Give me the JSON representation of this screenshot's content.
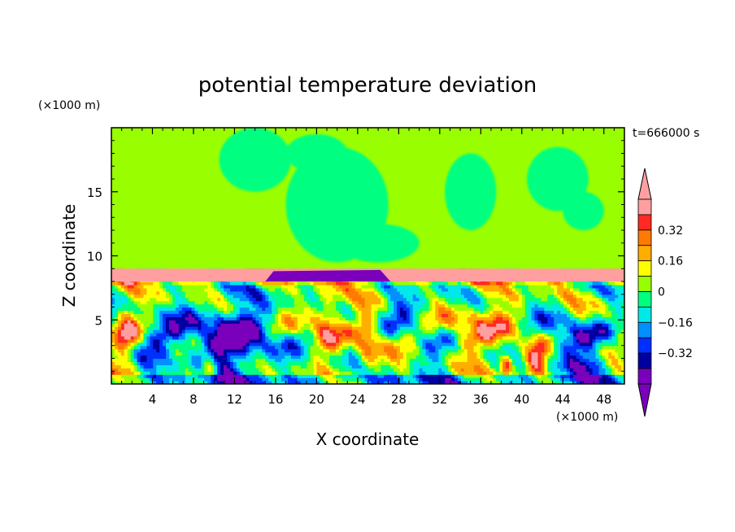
{
  "chart_data": {
    "type": "heatmap",
    "title": "potential temperature deviation",
    "xlabel": "X coordinate",
    "ylabel": "Z coordinate",
    "x_unit": "(×1000 m)",
    "y_unit": "(×1000 m)",
    "time_label": "t=666000 s",
    "xlim": [
      0,
      50
    ],
    "ylim": [
      0,
      20
    ],
    "x_ticks": [
      "4",
      "8",
      "12",
      "16",
      "20",
      "24",
      "28",
      "32",
      "36",
      "40",
      "44",
      "48"
    ],
    "y_ticks": [
      "5",
      "10",
      "15"
    ],
    "x_tick_values": [
      4,
      8,
      12,
      16,
      20,
      24,
      28,
      32,
      36,
      40,
      44,
      48
    ],
    "y_tick_values": [
      5,
      10,
      15
    ],
    "colorbar": {
      "levels": [
        -0.4,
        -0.32,
        -0.24,
        -0.16,
        -0.08,
        0,
        0.08,
        0.16,
        0.24,
        0.32,
        0.4
      ],
      "labels": [
        "0.32",
        "0.16",
        "0",
        "−0.16",
        "−0.32"
      ],
      "label_values": [
        0.32,
        0.16,
        0,
        -0.16,
        -0.32
      ],
      "colors": [
        "#ff9fa0",
        "#ff2a22",
        "#ff7a00",
        "#ffae00",
        "#ffff00",
        "#99ff00",
        "#00ff80",
        "#00e8e8",
        "#0090ff",
        "#0030ff",
        "#0000a0",
        "#7a00bb"
      ],
      "over_color": "#ff9fa0",
      "under_color": "#7a00bb"
    },
    "regions": {
      "upper_background": "#99ff00",
      "upper_patch": "#00ff80",
      "layer_top": 9,
      "inversion_band": "#ff9fa0",
      "cold_pool": "#7a00bb"
    }
  }
}
